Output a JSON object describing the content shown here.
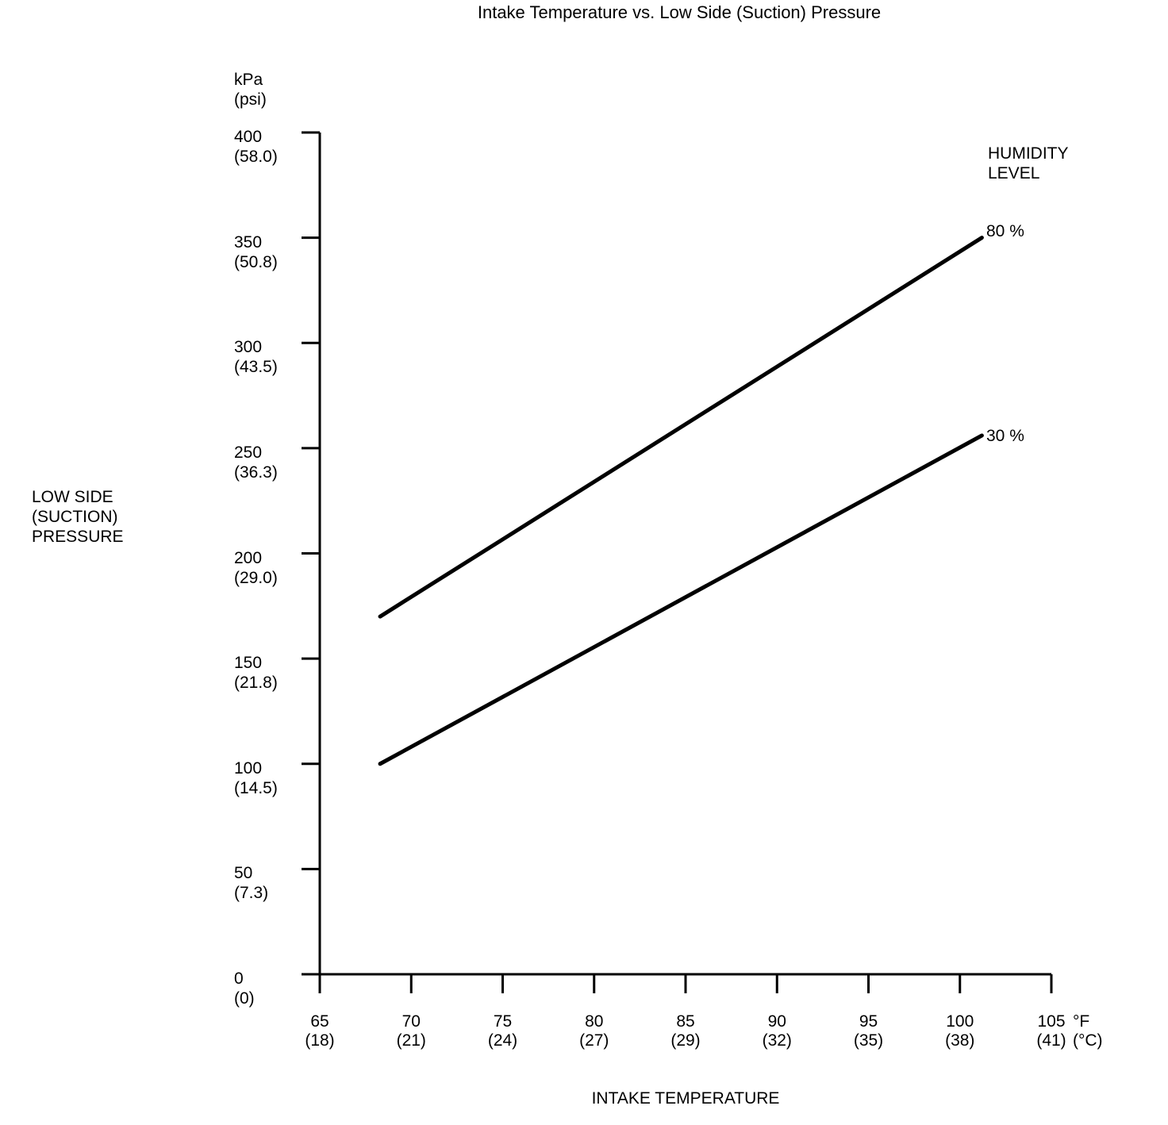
{
  "chart_data": {
    "type": "line",
    "title": "Intake Temperature vs. Low Side (Suction) Pressure",
    "xlabel": "INTAKE TEMPERATURE",
    "ylabel_lines": [
      "LOW SIDE",
      "(SUCTION)",
      "PRESSURE"
    ],
    "y_unit_lines": [
      "kPa",
      "(psi)"
    ],
    "x_unit_lines": [
      "°F",
      "(°C)"
    ],
    "xlim": [
      65,
      105
    ],
    "ylim": [
      0,
      400
    ],
    "grid": false,
    "line_color": "#000000",
    "background_color": "#ffffff",
    "x_ticks": [
      {
        "value": 65,
        "label": "65",
        "sub": "(18)"
      },
      {
        "value": 70,
        "label": "70",
        "sub": "(21)"
      },
      {
        "value": 75,
        "label": "75",
        "sub": "(24)"
      },
      {
        "value": 80,
        "label": "80",
        "sub": "(27)"
      },
      {
        "value": 85,
        "label": "85",
        "sub": "(29)"
      },
      {
        "value": 90,
        "label": "90",
        "sub": "(32)"
      },
      {
        "value": 95,
        "label": "95",
        "sub": "(35)"
      },
      {
        "value": 100,
        "label": "100",
        "sub": "(38)"
      },
      {
        "value": 105,
        "label": "105",
        "sub": "(41)"
      }
    ],
    "y_ticks": [
      {
        "value": 400,
        "label": "400",
        "sub": "(58.0)"
      },
      {
        "value": 350,
        "label": "350",
        "sub": "(50.8)"
      },
      {
        "value": 300,
        "label": "300",
        "sub": "(43.5)"
      },
      {
        "value": 250,
        "label": "250",
        "sub": "(36.3)"
      },
      {
        "value": 200,
        "label": "200",
        "sub": "(29.0)"
      },
      {
        "value": 150,
        "label": "150",
        "sub": "(21.8)"
      },
      {
        "value": 100,
        "label": "100",
        "sub": "(14.5)"
      },
      {
        "value": 50,
        "label": "50",
        "sub": "(7.3)"
      },
      {
        "value": 0,
        "label": "0",
        "sub": "(0)"
      }
    ],
    "legend": {
      "title_lines": [
        "HUMIDITY",
        "LEVEL"
      ],
      "position": "top-right"
    },
    "series": [
      {
        "name": "80 %",
        "humidity_percent": 80,
        "points_f_kpa": [
          [
            68.3,
            170
          ],
          [
            101.2,
            350
          ]
        ]
      },
      {
        "name": "30 %",
        "humidity_percent": 30,
        "points_f_kpa": [
          [
            68.3,
            100
          ],
          [
            101.2,
            256
          ]
        ]
      }
    ]
  }
}
